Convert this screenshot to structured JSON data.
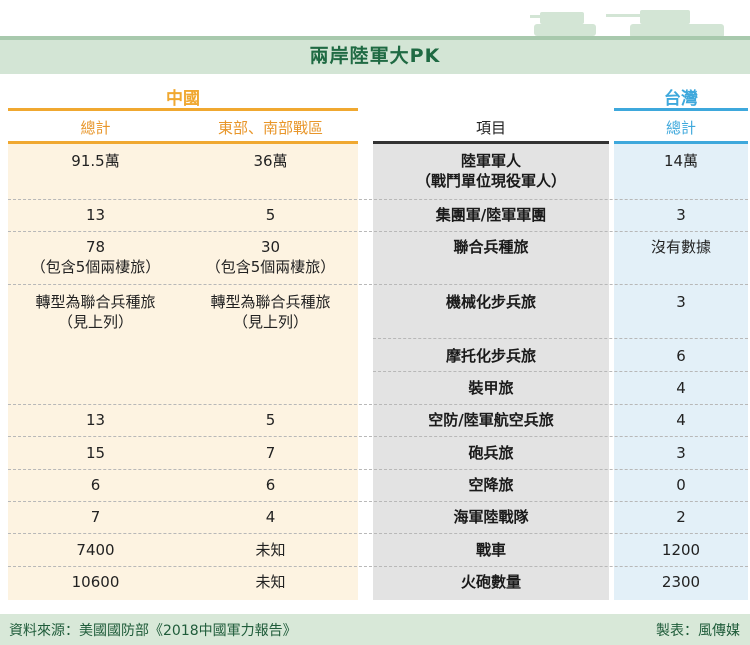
{
  "title": "兩岸陸軍大PK",
  "colors": {
    "china": "#f0a830",
    "china_bg": "#fdf3e1",
    "item_bg": "#e3e3e3",
    "taiwan": "#3ea8dc",
    "taiwan_bg": "#e3f0f8",
    "title_color": "#1f6a43"
  },
  "chart_data": {
    "type": "table",
    "title": "兩岸陸軍大PK",
    "groups": [
      {
        "name": "中國",
        "columns": [
          "總計",
          "東部、南部戰區"
        ]
      },
      {
        "name": "",
        "columns": [
          "項目"
        ]
      },
      {
        "name": "台灣",
        "columns": [
          "總計"
        ]
      }
    ],
    "rows": [
      {
        "item": "陸軍軍人\n（戰鬥單位現役軍人）",
        "china_total": "91.5萬",
        "china_east_south": "36萬",
        "taiwan_total": "14萬"
      },
      {
        "item": "集團軍/陸軍軍團",
        "china_total": "13",
        "china_east_south": "5",
        "taiwan_total": "3"
      },
      {
        "item": "聯合兵種旅",
        "china_total": "78\n（包含5個兩棲旅）",
        "china_east_south": "30\n（包含5個兩棲旅）",
        "taiwan_total": "沒有數據"
      },
      {
        "item": "機械化步兵旅",
        "china_total": "轉型為聯合兵種旅\n（見上列）",
        "china_east_south": "轉型為聯合兵種旅\n（見上列）",
        "taiwan_total": "3"
      },
      {
        "item": "摩托化步兵旅",
        "china_total": "",
        "china_east_south": "",
        "taiwan_total": "6"
      },
      {
        "item": "裝甲旅",
        "china_total": "",
        "china_east_south": "",
        "taiwan_total": "4"
      },
      {
        "item": "空防/陸軍航空兵旅",
        "china_total": "13",
        "china_east_south": "5",
        "taiwan_total": "4"
      },
      {
        "item": "砲兵旅",
        "china_total": "15",
        "china_east_south": "7",
        "taiwan_total": "3"
      },
      {
        "item": "空降旅",
        "china_total": "6",
        "china_east_south": "6",
        "taiwan_total": "0"
      },
      {
        "item": "海軍陸戰隊",
        "china_total": "7",
        "china_east_south": "4",
        "taiwan_total": "2"
      },
      {
        "item": "戰車",
        "china_total": "7400",
        "china_east_south": "未知",
        "taiwan_total": "1200"
      },
      {
        "item": "火砲數量",
        "china_total": "10600",
        "china_east_south": "未知",
        "taiwan_total": "2300"
      }
    ]
  },
  "footer": {
    "source": "資料來源：美國國防部《2018中國軍力報告》",
    "maker": "製表：風傳媒"
  }
}
